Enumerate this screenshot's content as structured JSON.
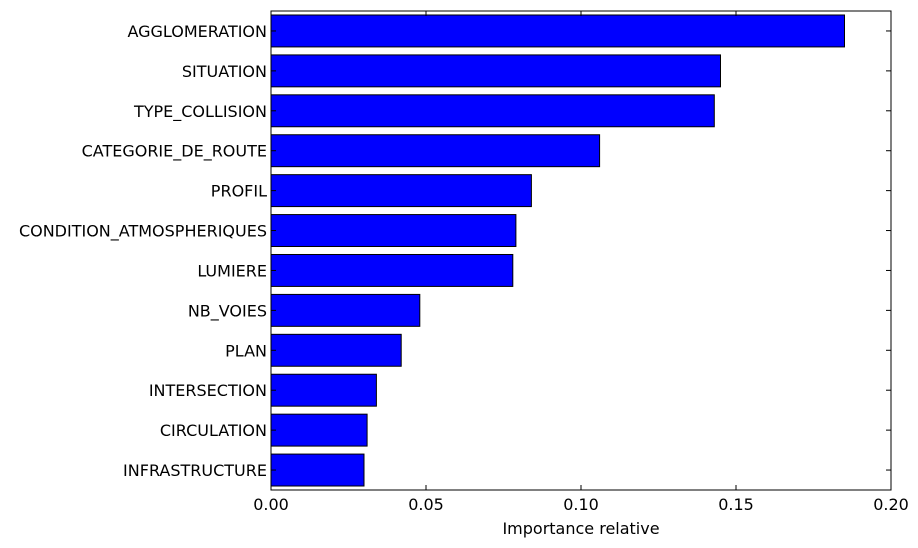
{
  "chart_data": {
    "type": "bar",
    "orientation": "horizontal",
    "categories": [
      "AGGLOMERATION",
      "SITUATION",
      "TYPE_COLLISION",
      "CATEGORIE_DE_ROUTE",
      "PROFIL",
      "CONDITION_ATMOSPHERIQUES",
      "LUMIERE",
      "NB_VOIES",
      "PLAN",
      "INTERSECTION",
      "CIRCULATION",
      "INFRASTRUCTURE"
    ],
    "values": [
      0.185,
      0.145,
      0.143,
      0.106,
      0.084,
      0.079,
      0.078,
      0.048,
      0.042,
      0.034,
      0.031,
      0.03
    ],
    "xlabel": "Importance relative",
    "xlim": [
      0,
      0.2
    ],
    "xticks": [
      "0.00",
      "0.05",
      "0.10",
      "0.15",
      "0.20"
    ],
    "grid": false,
    "bar_color": "#0000ff",
    "edge_color": "#000000"
  }
}
